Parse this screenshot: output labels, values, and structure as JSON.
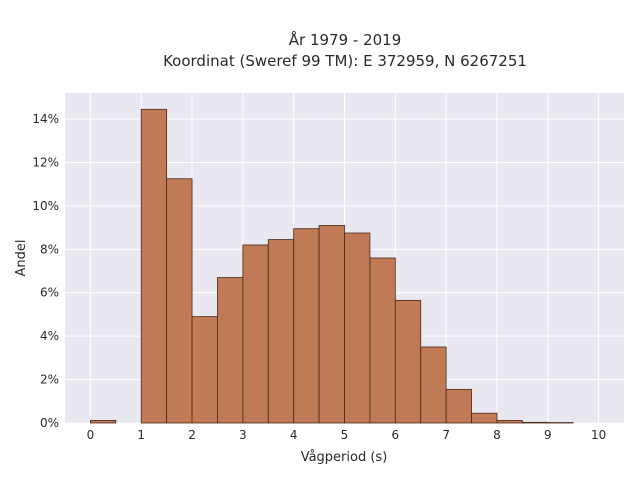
{
  "chart_data": {
    "type": "bar",
    "title": [
      "År 1979 - 2019",
      "Koordinat (Sweref 99 TM): E 372959, N 6267251"
    ],
    "xlabel": "Vågperiod (s)",
    "ylabel": "Andel",
    "xlim": [
      -0.5,
      10.5
    ],
    "ylim": [
      0,
      15.2
    ],
    "x_ticks": [
      0,
      1,
      2,
      3,
      4,
      5,
      6,
      7,
      8,
      9,
      10
    ],
    "y_ticks": [
      0,
      2,
      4,
      6,
      8,
      10,
      12,
      14
    ],
    "y_tick_suffix": "%",
    "bin_width": 0.5,
    "bins": [
      {
        "start": 0.0,
        "value": 0.12
      },
      {
        "start": 0.5,
        "value": 0.0
      },
      {
        "start": 1.0,
        "value": 14.45
      },
      {
        "start": 1.5,
        "value": 11.25
      },
      {
        "start": 2.0,
        "value": 4.9
      },
      {
        "start": 2.5,
        "value": 6.7
      },
      {
        "start": 3.0,
        "value": 8.2
      },
      {
        "start": 3.5,
        "value": 8.45
      },
      {
        "start": 4.0,
        "value": 8.95
      },
      {
        "start": 4.5,
        "value": 9.1
      },
      {
        "start": 5.0,
        "value": 8.75
      },
      {
        "start": 5.5,
        "value": 7.6
      },
      {
        "start": 6.0,
        "value": 5.65
      },
      {
        "start": 6.5,
        "value": 3.5
      },
      {
        "start": 7.0,
        "value": 1.55
      },
      {
        "start": 7.5,
        "value": 0.45
      },
      {
        "start": 8.0,
        "value": 0.12
      },
      {
        "start": 8.5,
        "value": 0.03
      },
      {
        "start": 9.0,
        "value": 0.02
      }
    ],
    "grid": true,
    "colors": {
      "bar_fill": "#c07a55",
      "bar_edge": "#4a2a1a",
      "plot_background": "#e8e8f0",
      "grid": "#ffffff"
    }
  }
}
